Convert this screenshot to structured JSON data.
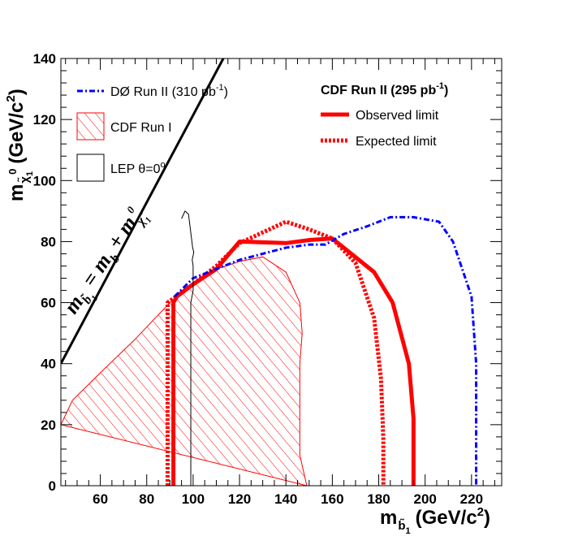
{
  "chart_data": {
    "type": "line",
    "xlabel_main": "m",
    "xlabel_sub": "b̃",
    "xlabel_subsub": "1",
    "xlabel_unit": "(GeV/c",
    "xlabel_unit_sup": "2",
    "xlabel_unit_close": ")",
    "ylabel_main": "m",
    "ylabel_sub": "χ̃",
    "ylabel_subsub": "1",
    "ylabel_sup": "0",
    "ylabel_unit": "(GeV/c",
    "ylabel_unit_sup": "2",
    "ylabel_unit_close": ")",
    "xlim": [
      43,
      233
    ],
    "ylim": [
      0,
      140
    ],
    "xticks": [
      60,
      80,
      100,
      120,
      140,
      160,
      180,
      200,
      220
    ],
    "yticks": [
      0,
      20,
      40,
      60,
      80,
      100,
      120,
      140
    ],
    "legend_left": {
      "d0_label": "DØ Run II (310 pb",
      "d0_label_sup": "-1",
      "d0_label_close": ")",
      "cdf1_label": "CDF Run I",
      "lep_label": "LEP θ=0",
      "lep_label_sup": "o"
    },
    "legend_right": {
      "header": "CDF Run II (295 pb",
      "header_sup": "-1",
      "header_close": ")",
      "observed_label": "Observed limit",
      "expected_label": "Expected limit"
    },
    "kinematic_label": {
      "m1": "m",
      "sub1": "b̃",
      "subsub1": "1",
      "eq": " = ",
      "m2": "m",
      "sub2": "b",
      "plus": " + ",
      "m3": "m",
      "sub3": "χ̃",
      "subsub3": "1",
      "sup3": "0"
    },
    "series": [
      {
        "id": "observed",
        "color": "#ff0000",
        "style": "solid",
        "x": [
          91.5,
          91.5,
          93,
          100,
          110,
          120,
          140,
          150,
          160,
          178,
          186,
          193,
          195,
          195
        ],
        "y": [
          0,
          60,
          62,
          66,
          71,
          80,
          79.5,
          80.5,
          81,
          70,
          60,
          40,
          22,
          0
        ]
      },
      {
        "id": "expected",
        "color": "#ff0000",
        "style": "dotted",
        "x": [
          89,
          89,
          100,
          110,
          120,
          130,
          140,
          150,
          160,
          170,
          178,
          181,
          182,
          182
        ],
        "y": [
          0,
          60,
          66,
          72,
          79.5,
          83,
          86.5,
          84,
          81,
          73,
          55,
          35,
          15,
          0
        ]
      },
      {
        "id": "d0",
        "color": "#0000ff",
        "style": "dashdot",
        "x": [
          92,
          100,
          120,
          140,
          150,
          157,
          165,
          175,
          185,
          195,
          206,
          212,
          220,
          222,
          222
        ],
        "y": [
          62,
          68,
          74,
          78,
          79,
          79,
          82.5,
          85,
          88,
          88,
          86.5,
          80,
          62,
          40,
          0
        ]
      },
      {
        "id": "lep",
        "color": "#000000",
        "style": "thin",
        "x": [
          99,
          99,
          100,
          100,
          99.6,
          100.3,
          99.8,
          98,
          96.5,
          95
        ],
        "y": [
          0,
          60,
          64,
          72,
          74,
          76.5,
          78,
          89,
          90,
          87.5
        ]
      }
    ],
    "cdf_run1_region": {
      "color": "#ff0000",
      "x": [
        43,
        48,
        60,
        75,
        90,
        100,
        110,
        120,
        130,
        140,
        146,
        147,
        146,
        146,
        149,
        149
      ],
      "y": [
        20,
        28,
        37,
        48,
        60,
        66,
        71,
        73.5,
        75,
        70,
        60,
        50,
        40,
        10,
        0,
        0
      ]
    },
    "kinematic_line": {
      "x": [
        43,
        113
      ],
      "y": [
        40,
        140
      ]
    }
  }
}
